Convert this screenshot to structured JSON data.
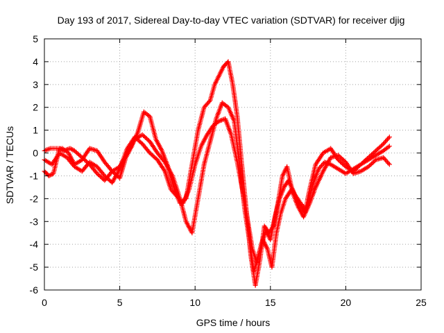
{
  "chart_data": {
    "type": "scatter",
    "title": "Day 193 of 2017, Sidereal Day-to-day VTEC variation (SDTVAR) for receiver djig",
    "xlabel": "GPS time / hours",
    "ylabel": "SDTVAR / TECUs",
    "xlim": [
      0,
      25
    ],
    "ylim": [
      -6,
      5
    ],
    "xticks": [
      "0",
      "5",
      "10",
      "15",
      "20",
      "25"
    ],
    "yticks": [
      "-6",
      "-5",
      "-4",
      "-3",
      "-2",
      "-1",
      "0",
      "1",
      "2",
      "3",
      "4",
      "5"
    ],
    "grid": true,
    "marker": "+",
    "color": "#ff0000",
    "series": [
      {
        "x": [
          0.0,
          0.3,
          0.6,
          1.0,
          1.3,
          1.7,
          2.0,
          2.5,
          3.0,
          3.5,
          4.0,
          4.5,
          5.0,
          5.4,
          5.8,
          6.2,
          6.6,
          7.0,
          7.4,
          7.8,
          8.2,
          8.6,
          9.0,
          9.4,
          9.8,
          10.2,
          10.6,
          11.0,
          11.3,
          11.6,
          11.9,
          12.2,
          12.5,
          12.8,
          13.1,
          13.4,
          13.7,
          14.0,
          14.3,
          14.6,
          14.9,
          15.2,
          15.5,
          15.8,
          16.1,
          16.4,
          16.7,
          17.0,
          17.3,
          17.6,
          18.0,
          18.5,
          19.0,
          19.5,
          20.0,
          20.5,
          21.0,
          21.5,
          22.0,
          22.5,
          22.9
        ],
        "y": [
          -0.8,
          -1.0,
          -0.9,
          0.2,
          0.1,
          0.2,
          0.1,
          -0.2,
          -0.5,
          -0.9,
          -1.2,
          -0.8,
          -1.1,
          -0.2,
          0.3,
          0.9,
          1.8,
          1.6,
          0.6,
          0.1,
          -0.6,
          -1.5,
          -2.2,
          -2.0,
          -0.5,
          1.0,
          2.0,
          2.3,
          3.0,
          3.4,
          3.8,
          4.0,
          3.0,
          1.6,
          -0.5,
          -2.5,
          -4.5,
          -5.8,
          -4.7,
          -3.2,
          -3.5,
          -3.2,
          -2.2,
          -1.0,
          -0.6,
          -1.5,
          -2.0,
          -2.3,
          -2.6,
          -1.6,
          -0.5,
          0.0,
          0.2,
          -0.3,
          -0.6,
          -0.8,
          -0.5,
          -0.2,
          0.1,
          0.4,
          0.7
        ]
      },
      {
        "x": [
          0.0,
          0.4,
          0.8,
          1.2,
          1.6,
          2.0,
          2.5,
          3.0,
          3.5,
          4.0,
          4.5,
          5.0,
          5.5,
          6.0,
          6.5,
          7.0,
          7.5,
          8.0,
          8.5,
          9.0,
          9.4,
          9.8,
          10.2,
          10.6,
          11.0,
          11.4,
          11.8,
          12.2,
          12.6,
          13.0,
          13.3,
          13.6,
          13.9,
          14.2,
          14.5,
          14.8,
          15.1,
          15.4,
          15.7,
          16.0,
          16.4,
          16.8,
          17.2,
          17.6,
          18.0,
          18.5,
          19.0,
          19.5,
          20.0,
          20.5,
          21.0,
          21.5,
          22.0,
          22.5,
          22.9
        ],
        "y": [
          0.1,
          0.2,
          0.2,
          0.2,
          0.0,
          -0.5,
          -0.3,
          0.2,
          0.1,
          -0.4,
          -0.8,
          -0.6,
          0.0,
          0.6,
          0.8,
          0.5,
          0.0,
          -0.4,
          -1.0,
          -2.0,
          -3.0,
          -3.5,
          -2.0,
          -0.5,
          0.5,
          1.5,
          2.2,
          2.0,
          1.4,
          -0.8,
          -2.5,
          -3.8,
          -5.2,
          -4.5,
          -3.8,
          -4.2,
          -5.0,
          -3.5,
          -2.6,
          -2.0,
          -1.6,
          -2.3,
          -2.8,
          -2.2,
          -1.5,
          -0.8,
          -0.2,
          -0.1,
          -0.4,
          -0.9,
          -0.8,
          -0.6,
          -0.3,
          -0.2,
          -0.5
        ]
      },
      {
        "x": [
          0.0,
          0.5,
          1.0,
          1.5,
          2.0,
          2.5,
          3.0,
          3.5,
          4.0,
          4.5,
          5.0,
          5.5,
          6.0,
          6.5,
          7.0,
          7.5,
          8.0,
          8.4,
          8.8,
          9.2,
          9.6,
          10.0,
          10.4,
          10.8,
          11.2,
          11.6,
          12.0,
          12.4,
          12.8,
          13.2,
          13.5,
          13.8,
          14.1,
          14.4,
          14.7,
          15.0,
          15.3,
          15.6,
          15.9,
          16.2,
          16.6,
          17.0,
          17.4,
          17.8,
          18.2,
          18.6,
          19.0,
          19.5,
          20.0,
          20.5,
          21.0,
          21.5,
          22.0,
          22.5,
          22.9
        ],
        "y": [
          -0.3,
          -0.5,
          0.0,
          -0.2,
          -0.6,
          -0.8,
          -0.4,
          -0.6,
          -1.0,
          -1.3,
          -0.7,
          0.2,
          0.7,
          0.4,
          0.0,
          -0.3,
          -0.8,
          -1.6,
          -1.9,
          -2.2,
          -1.6,
          -0.5,
          0.3,
          0.8,
          1.2,
          1.4,
          1.5,
          0.8,
          -0.4,
          -1.8,
          -3.0,
          -4.2,
          -4.8,
          -4.0,
          -3.4,
          -3.8,
          -2.8,
          -2.0,
          -1.5,
          -1.2,
          -1.8,
          -2.2,
          -2.5,
          -1.4,
          -0.7,
          -0.4,
          -0.5,
          -0.7,
          -0.9,
          -0.7,
          -0.5,
          -0.3,
          -0.1,
          0.1,
          0.3
        ]
      }
    ]
  }
}
